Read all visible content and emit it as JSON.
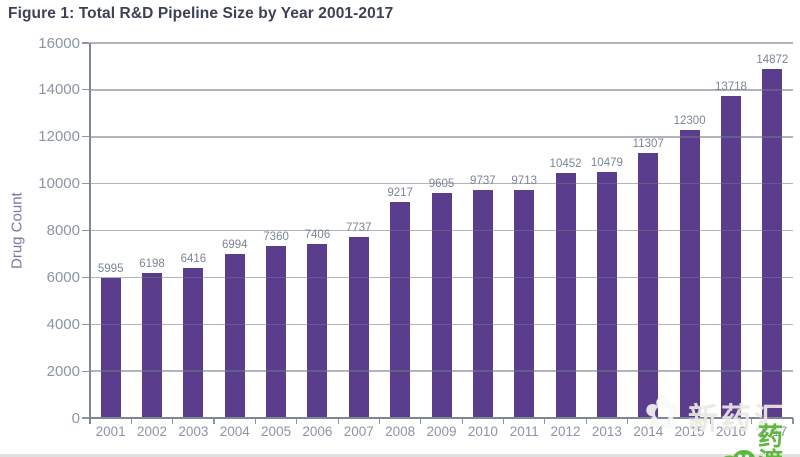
{
  "title": "Figure 1: Total R&D Pipeline Size by Year 2001-2017",
  "chart_data": {
    "type": "bar",
    "title": "Figure 1: Total R&D Pipeline Size by Year 2001-2017",
    "xlabel": "",
    "ylabel": "Drug Count",
    "categories": [
      "2001",
      "2002",
      "2003",
      "2004",
      "2005",
      "2006",
      "2007",
      "2008",
      "2009",
      "2010",
      "2011",
      "2012",
      "2013",
      "2014",
      "2015",
      "2016",
      "2017"
    ],
    "values": [
      5995,
      6198,
      6416,
      6994,
      7360,
      7406,
      7737,
      9217,
      9605,
      9737,
      9713,
      10452,
      10479,
      11307,
      12300,
      13718,
      14872
    ],
    "ylim": [
      0,
      16000
    ],
    "yticks": [
      0,
      2000,
      4000,
      6000,
      8000,
      10000,
      12000,
      14000,
      16000
    ],
    "grid": "horizontal-on-top-of-bars",
    "legend": "none",
    "data_labels": "above-bars"
  },
  "colors": {
    "title": "#3d4158",
    "bar": "#5b3d8e",
    "axis": "#7e8795",
    "tick_label": "#8b95a6",
    "value_label": "#7c8596",
    "y_axis_title": "#8173a2",
    "brand_green": "#5eb83f"
  },
  "watermarks": {
    "flower_icon": "✿",
    "overlay_text": "新药汇",
    "brand_text": "药渡"
  }
}
